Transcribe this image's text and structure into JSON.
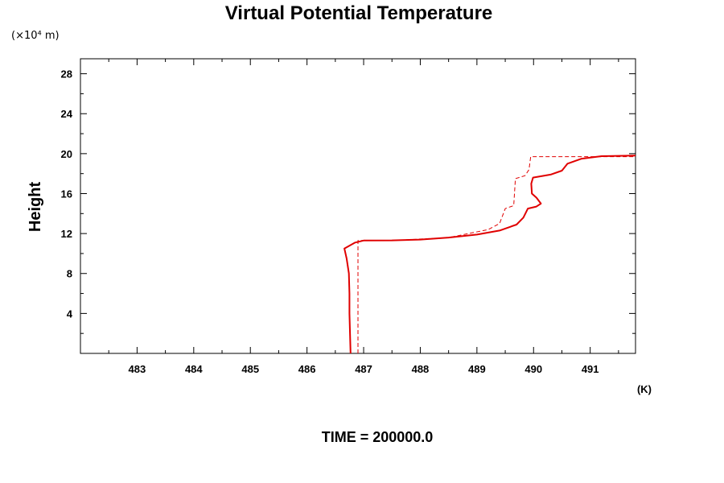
{
  "chart_data": {
    "type": "line",
    "title": "Virtual Potential Temperature",
    "ylabel": "Height",
    "y_unit_label": "(×10⁴ m)",
    "x_unit_label": "(K)",
    "footer": "TIME = 200000.0",
    "xlim": [
      482.0,
      491.8
    ],
    "ylim": [
      0,
      29.5
    ],
    "xticks": [
      483,
      484,
      485,
      486,
      487,
      488,
      489,
      490,
      491
    ],
    "yticks": [
      4,
      8,
      12,
      16,
      20,
      24,
      28
    ],
    "grid": false,
    "series": [
      {
        "style": "solid",
        "color": "#e00000",
        "points": [
          [
            486.77,
            0.0
          ],
          [
            486.76,
            2.0
          ],
          [
            486.75,
            4.0
          ],
          [
            486.75,
            6.0
          ],
          [
            486.74,
            8.0
          ],
          [
            486.7,
            9.5
          ],
          [
            486.66,
            10.5
          ],
          [
            486.85,
            11.1
          ],
          [
            487.0,
            11.3
          ],
          [
            487.5,
            11.32
          ],
          [
            488.0,
            11.4
          ],
          [
            488.5,
            11.6
          ],
          [
            489.0,
            11.9
          ],
          [
            489.4,
            12.3
          ],
          [
            489.7,
            12.9
          ],
          [
            489.82,
            13.6
          ],
          [
            489.9,
            14.5
          ],
          [
            490.05,
            14.7
          ],
          [
            490.13,
            15.0
          ],
          [
            490.05,
            15.6
          ],
          [
            489.97,
            16.0
          ],
          [
            489.96,
            17.0
          ],
          [
            489.99,
            17.6
          ],
          [
            490.3,
            17.9
          ],
          [
            490.5,
            18.3
          ],
          [
            490.6,
            19.0
          ],
          [
            490.85,
            19.5
          ],
          [
            491.2,
            19.75
          ],
          [
            491.8,
            19.8
          ]
        ]
      },
      {
        "style": "dashed",
        "color": "#e00000",
        "points": [
          [
            486.9,
            0.0
          ],
          [
            486.9,
            11.3
          ],
          [
            487.5,
            11.3
          ],
          [
            488.5,
            11.6
          ],
          [
            489.2,
            12.4
          ],
          [
            489.4,
            13.0
          ],
          [
            489.5,
            14.5
          ],
          [
            489.65,
            14.8
          ],
          [
            489.68,
            17.5
          ],
          [
            489.85,
            17.8
          ],
          [
            489.92,
            18.4
          ],
          [
            489.95,
            19.7
          ],
          [
            491.0,
            19.7
          ],
          [
            491.8,
            19.7
          ]
        ]
      }
    ]
  }
}
